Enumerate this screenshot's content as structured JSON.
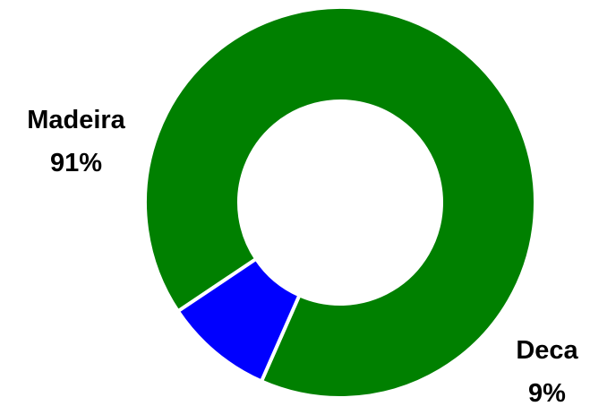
{
  "chart_data": {
    "type": "pie",
    "donut": true,
    "slices": [
      {
        "label": "Madeira",
        "percent_label": "91%",
        "value": 91,
        "color": "#008000"
      },
      {
        "label": "Deca",
        "percent_label": "9%",
        "value": 9,
        "color": "#0000ff"
      }
    ]
  }
}
